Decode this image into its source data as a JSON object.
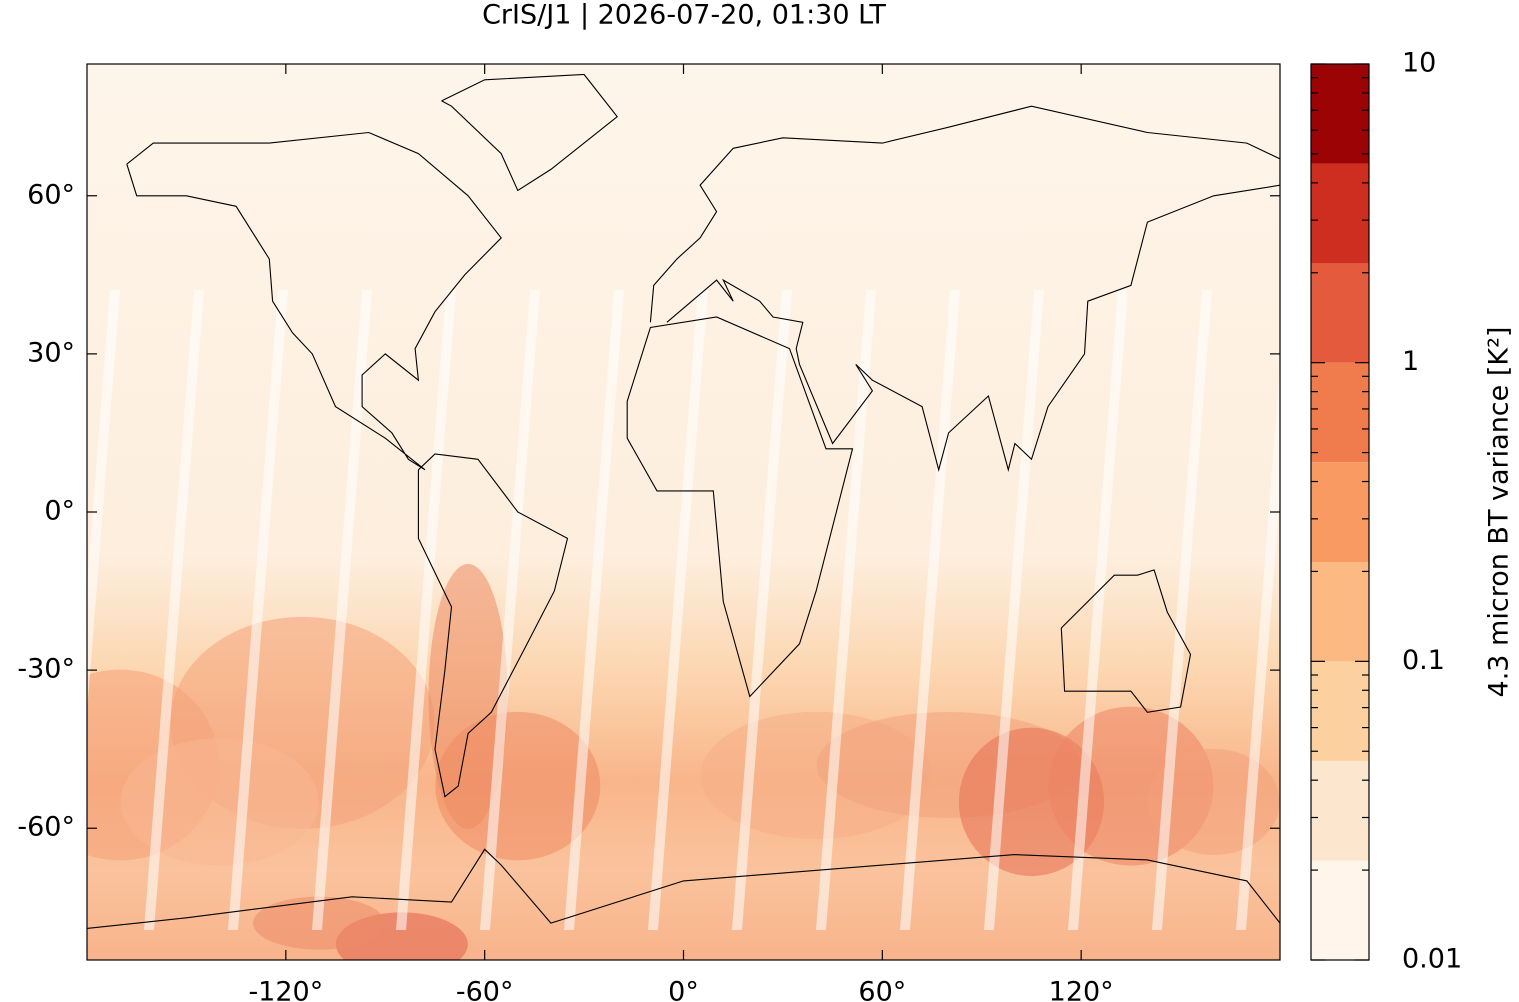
{
  "chart_data": {
    "type": "map",
    "title": "CrIS/J1 | 2026-07-20, 01:30 LT",
    "xlim": [
      -180,
      180
    ],
    "ylim": [
      -85,
      85
    ],
    "xticks": [
      {
        "value": -120,
        "label": "-120°"
      },
      {
        "value": -60,
        "label": "-60°"
      },
      {
        "value": 0,
        "label": "0°"
      },
      {
        "value": 60,
        "label": "60°"
      },
      {
        "value": 120,
        "label": "120°"
      }
    ],
    "yticks": [
      {
        "value": -60,
        "label": "-60°"
      },
      {
        "value": -30,
        "label": "-30°"
      },
      {
        "value": 0,
        "label": "0°"
      },
      {
        "value": 30,
        "label": "30°"
      },
      {
        "value": 60,
        "label": "60°"
      }
    ],
    "colorbar": {
      "label": "4.3 micron BT variance [K²]",
      "log": true,
      "lim": [
        0.01,
        10
      ],
      "ticks": [
        0.01,
        0.1,
        1,
        10
      ],
      "minor_ticks": [
        0.02,
        0.03,
        0.04,
        0.05,
        0.06,
        0.07,
        0.08,
        0.09,
        0.2,
        0.3,
        0.4,
        0.5,
        0.6,
        0.7,
        0.8,
        0.9,
        2,
        3,
        4,
        5,
        6,
        7,
        8,
        9
      ],
      "levels": [
        0.01,
        0.0215,
        0.0464,
        0.1,
        0.215,
        0.464,
        1,
        2.15,
        4.64,
        10
      ],
      "colors": [
        "#fff5eb",
        "#fde6ce",
        "#fcd09f",
        "#fcb982",
        "#f99a63",
        "#f07c4e",
        "#e45a3c",
        "#cd2e1f",
        "#9b0304"
      ]
    }
  }
}
